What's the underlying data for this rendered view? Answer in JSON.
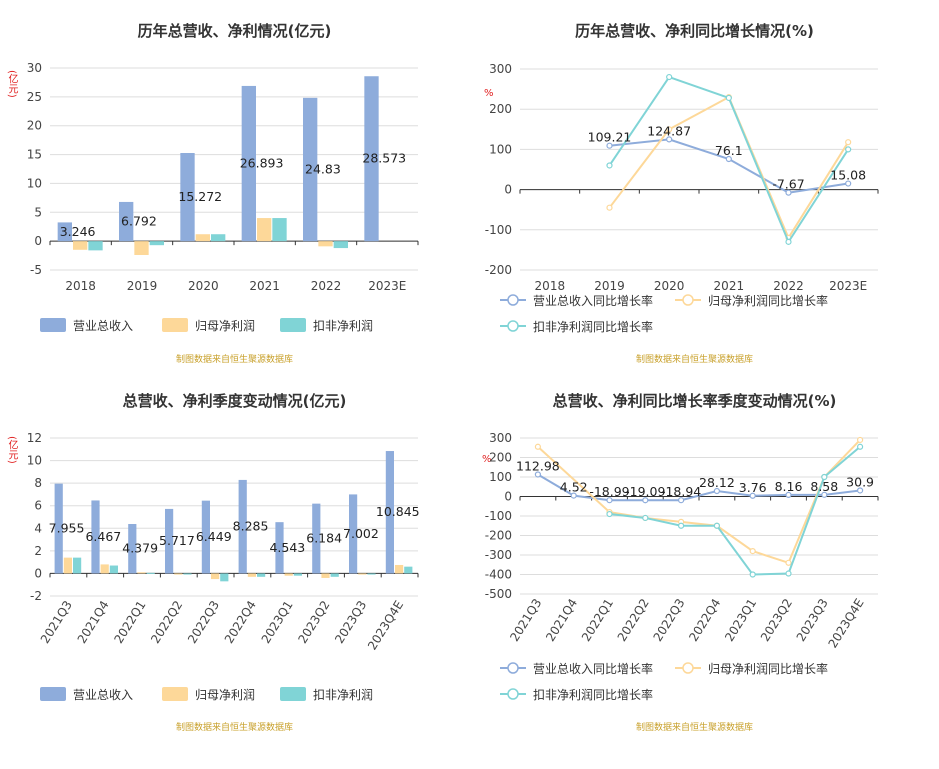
{
  "colors": {
    "revenue": "#8eacdb",
    "net_profit": "#fdd899",
    "deducted_profit": "#80d4d6",
    "grid": "#dddddd",
    "axis": "#333333",
    "source": "#c8a02a",
    "unit": "#e02020"
  },
  "source_text": "制图数据来自恒生聚源数据库",
  "chart_data": [
    {
      "type": "bar",
      "title": "历年总营收、净利情况(亿元)",
      "ylabel": "(亿元)",
      "ylim": [
        -5,
        30
      ],
      "yticks": [
        -5,
        0,
        5,
        10,
        15,
        20,
        25,
        30
      ],
      "categories": [
        "2018",
        "2019",
        "2020",
        "2021",
        "2022",
        "2023E"
      ],
      "series": [
        {
          "name": "营业总收入",
          "values": [
            3.246,
            6.792,
            15.272,
            26.893,
            24.83,
            28.573
          ]
        },
        {
          "name": "归母净利润",
          "values": [
            -1.5,
            -2.4,
            1.2,
            4.0,
            -0.9,
            0
          ]
        },
        {
          "name": "扣非净利润",
          "values": [
            -1.6,
            -0.7,
            1.2,
            4.0,
            -1.2,
            0
          ]
        }
      ],
      "data_labels": [
        "3.246",
        "6.792",
        "15.272",
        "26.893",
        "24.83",
        "28.573"
      ],
      "legend": "bottom-left",
      "grid": true
    },
    {
      "type": "line",
      "title": "历年总营收、净利同比增长情况(%)",
      "ylabel": "%",
      "ylim": [
        -200,
        300
      ],
      "yticks": [
        -200,
        -100,
        0,
        100,
        200,
        300
      ],
      "categories": [
        "2018",
        "2019",
        "2020",
        "2021",
        "2022",
        "2023E"
      ],
      "series": [
        {
          "name": "营业总收入同比增长率",
          "values": [
            null,
            109.21,
            124.87,
            76.1,
            -7.67,
            15.08
          ]
        },
        {
          "name": "归母净利润同比增长率",
          "values": [
            null,
            -45,
            150,
            230,
            -120,
            118
          ]
        },
        {
          "name": "扣非净利润同比增长率",
          "values": [
            null,
            60,
            280,
            228,
            -130,
            100
          ]
        }
      ],
      "data_labels": [
        null,
        "109.21",
        "124.87",
        "76.1",
        "-7.67",
        "15.08"
      ],
      "legend": "bottom-left",
      "grid": true
    },
    {
      "type": "bar",
      "title": "总营收、净利季度变动情况(亿元)",
      "ylabel": "(亿元)",
      "ylim": [
        -2,
        12
      ],
      "yticks": [
        -2,
        0,
        2,
        4,
        6,
        8,
        10,
        12
      ],
      "categories": [
        "2021Q3",
        "2021Q4",
        "2022Q1",
        "2022Q2",
        "2022Q3",
        "2022Q4",
        "2023Q1",
        "2023Q2",
        "2023Q3",
        "2023Q4E"
      ],
      "series": [
        {
          "name": "营业总收入",
          "values": [
            7.955,
            6.467,
            4.379,
            5.717,
            6.449,
            8.285,
            4.543,
            6.184,
            7.002,
            10.845
          ]
        },
        {
          "name": "归母净利润",
          "values": [
            1.4,
            0.8,
            0.1,
            -0.1,
            -0.5,
            -0.3,
            -0.2,
            -0.4,
            -0.1,
            0.75
          ]
        },
        {
          "name": "扣非净利润",
          "values": [
            1.4,
            0.7,
            0.05,
            -0.1,
            -0.7,
            -0.3,
            -0.2,
            -0.3,
            -0.1,
            0.6
          ]
        }
      ],
      "data_labels": [
        "7.955",
        "6.467",
        "4.379",
        "5.717",
        "6.449",
        "8.285",
        "4.543",
        "6.184",
        "7.002",
        "10.845"
      ],
      "legend": "bottom-left",
      "grid": true
    },
    {
      "type": "line",
      "title": "总营收、净利同比增长率季度变动情况(%)",
      "ylabel": "%",
      "ylim": [
        -500,
        300
      ],
      "yticks": [
        -500,
        -400,
        -300,
        -200,
        -100,
        0,
        100,
        200,
        300
      ],
      "categories": [
        "2021Q3",
        "2021Q4",
        "2022Q1",
        "2022Q2",
        "2022Q3",
        "2022Q4",
        "2023Q1",
        "2023Q2",
        "2023Q3",
        "2023Q4E"
      ],
      "series": [
        {
          "name": "营业总收入同比增长率",
          "values": [
            112.98,
            4.52,
            -18.99,
            -19.09,
            -18.94,
            28.12,
            3.76,
            8.16,
            8.58,
            30.9
          ]
        },
        {
          "name": "归母净利润同比增长率",
          "values": [
            255,
            null,
            -80,
            -110,
            -130,
            -150,
            -280,
            -340,
            100,
            290
          ]
        },
        {
          "name": "扣非净利润同比增长率",
          "values": [
            null,
            null,
            -90,
            -110,
            -150,
            -150,
            -400,
            -395,
            100,
            255
          ]
        }
      ],
      "data_labels": [
        "112.98",
        "4.52",
        "-18.99",
        "-19.09",
        "-18.94",
        "28.12",
        "3.76",
        "8.16",
        "8.58",
        "30.9"
      ],
      "legend": "bottom-left",
      "grid": true
    }
  ]
}
